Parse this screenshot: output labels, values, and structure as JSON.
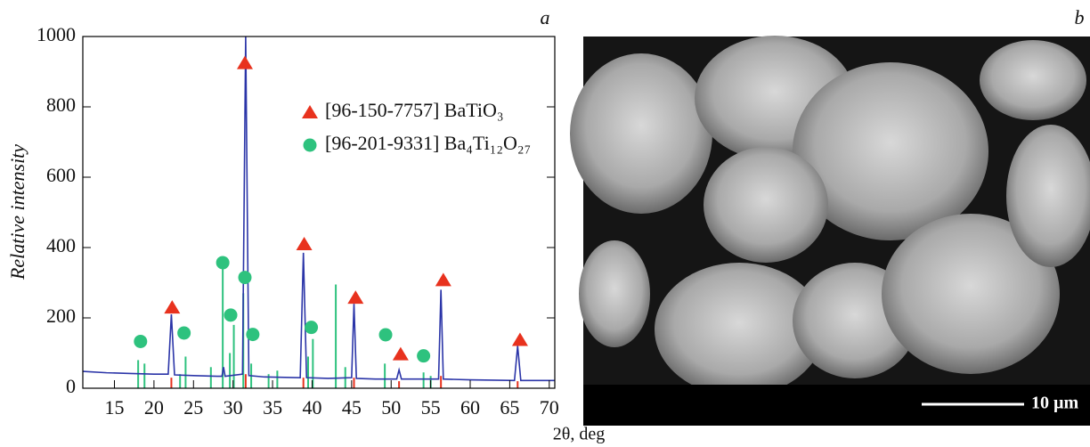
{
  "chart_data": {
    "type": "line",
    "panel_label": "a",
    "x_label": "2θ, deg",
    "y_label": "Relative intensity",
    "xlim": [
      11,
      70.7
    ],
    "xticks": [
      15,
      20,
      25,
      30,
      35,
      40,
      45,
      50,
      55,
      60,
      65,
      70
    ],
    "ylim": [
      0,
      1000
    ],
    "yticks": [
      0,
      200,
      400,
      600,
      800,
      1000
    ],
    "legend": "upper center",
    "measured": {
      "color": "#2b35a8",
      "x": [
        11,
        14,
        17,
        20,
        21.8,
        22.2,
        22.6,
        25,
        28,
        28.6,
        28.8,
        29,
        31.2,
        31.6,
        32.0,
        34,
        38.5,
        38.9,
        39.3,
        42,
        45.0,
        45.3,
        45.6,
        48,
        50.7,
        51.0,
        51.3,
        54,
        56.0,
        56.3,
        56.6,
        60,
        65.6,
        66.0,
        66.4,
        70.7
      ],
      "values": [
        48,
        44,
        42,
        40,
        40,
        210,
        38,
        36,
        34,
        34,
        60,
        34,
        40,
        1000,
        36,
        32,
        30,
        385,
        30,
        28,
        30,
        240,
        28,
        26,
        26,
        52,
        26,
        26,
        26,
        280,
        26,
        24,
        22,
        120,
        22,
        22
      ]
    },
    "series": [
      {
        "name": "[96-150-7757] BaTiO₃",
        "color": "#e8321e",
        "marker": "triangle",
        "x": [
          22.2,
          31.6,
          38.9,
          45.3,
          51.0,
          56.3,
          66.0
        ],
        "values": [
          30,
          40,
          30,
          30,
          20,
          35,
          20
        ],
        "marker_x": [
          22.3,
          31.5,
          39.0,
          45.5,
          51.2,
          56.6,
          66.3
        ],
        "marker_values": [
          230,
          925,
          410,
          258,
          97,
          308,
          138
        ]
      },
      {
        "name": "[96-201-9331] Ba₄Ti₁₂O₂₇",
        "color": "#2ec27e",
        "marker": "circle",
        "x": [
          18.0,
          18.8,
          23.3,
          24.0,
          27.2,
          28.7,
          29.6,
          30.1,
          31.3,
          32.3,
          34.5,
          35.6,
          39.5,
          40.1,
          43.0,
          44.2,
          49.2,
          54.1,
          55.0
        ],
        "values": [
          80,
          70,
          40,
          90,
          60,
          360,
          100,
          180,
          270,
          70,
          40,
          50,
          90,
          140,
          295,
          60,
          70,
          45,
          35
        ],
        "marker_x": [
          18.3,
          23.8,
          28.7,
          29.7,
          31.5,
          32.5,
          39.9,
          49.3,
          54.1
        ],
        "marker_values": [
          133,
          157,
          357,
          208,
          315,
          153,
          173,
          152,
          92
        ]
      }
    ]
  },
  "image": {
    "panel_label": "b",
    "scale_bar": "10 µm"
  }
}
